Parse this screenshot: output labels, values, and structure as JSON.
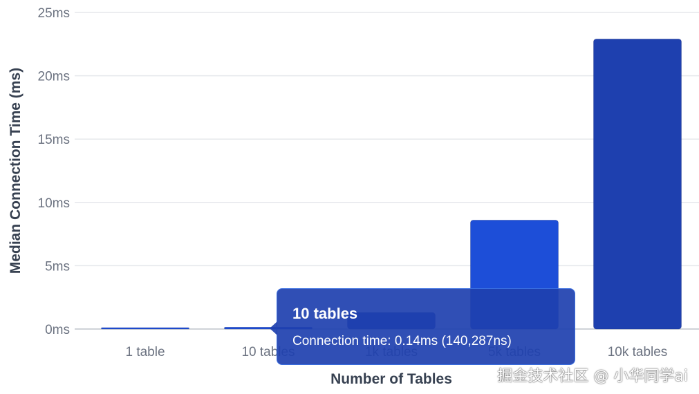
{
  "chart_data": {
    "type": "bar",
    "categories": [
      "1 table",
      "10 tables",
      "1k tables",
      "5k tables",
      "10k tables"
    ],
    "values": [
      0.1,
      0.14,
      1.3,
      8.6,
      22.9
    ],
    "bar_colors": [
      "#1d4ed8",
      "#1d4ed8",
      "#1e40af",
      "#1d4ed8",
      "#1e40af"
    ],
    "xlabel": "Number of Tables",
    "ylabel": "Median Connection Time (ms)",
    "ylim": [
      0,
      25
    ],
    "yticks": [
      0,
      5,
      10,
      15,
      20,
      25
    ],
    "ytick_labels": [
      "0ms",
      "5ms",
      "10ms",
      "15ms",
      "20ms",
      "25ms"
    ],
    "grid": true,
    "legend": "none"
  },
  "tooltip": {
    "title": "10 tables",
    "body": "Connection time: 0.14ms (140,287ns)"
  },
  "watermark": "掘金技术社区 @ 小华同学ai"
}
